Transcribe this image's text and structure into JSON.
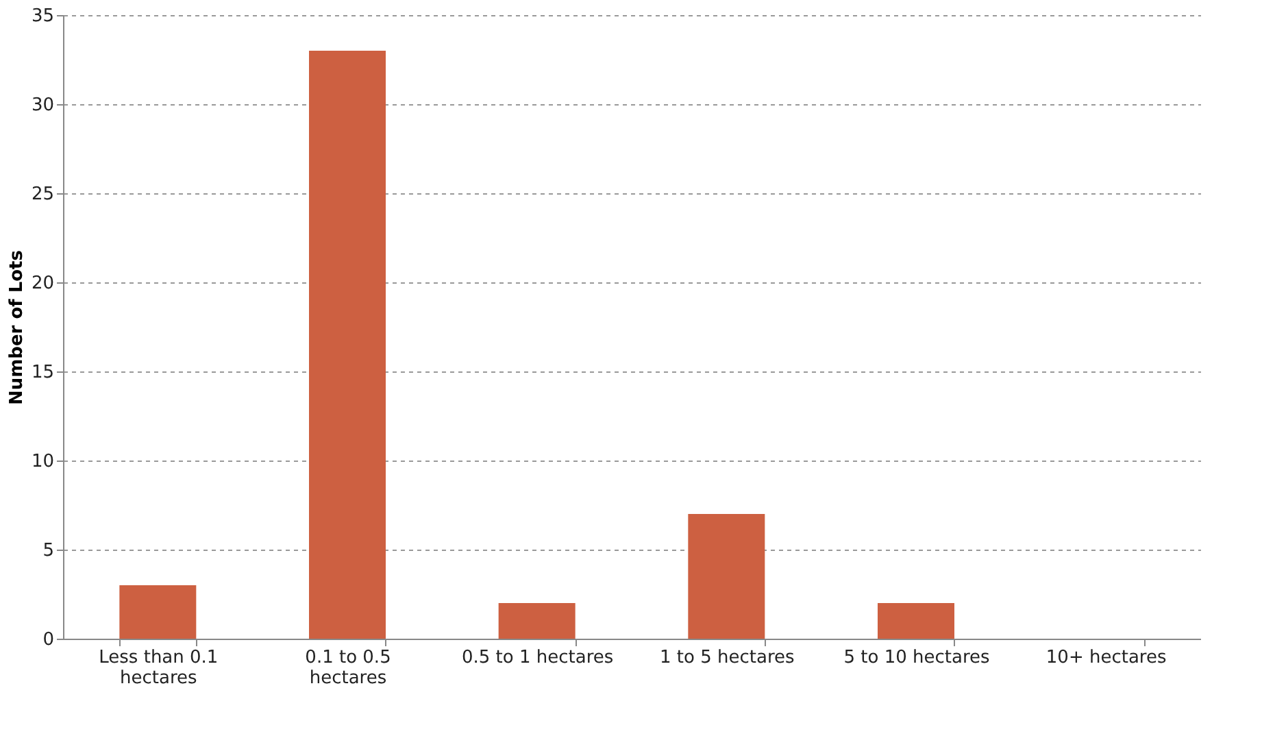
{
  "chart_data": {
    "type": "bar",
    "categories": [
      "Less than 0.1 hectares",
      "0.1 to 0.5 hectares",
      "0.5 to 1 hectares",
      "1 to 5 hectares",
      "5 to 10 hectares",
      "10+ hectares"
    ],
    "values": [
      3,
      33,
      2,
      7,
      2,
      0
    ],
    "color": "#cd6041",
    "ylabel": "Number of Lots",
    "ylim": [
      0,
      35
    ],
    "yticks": [
      0,
      5,
      10,
      15,
      20,
      25,
      30,
      35
    ],
    "grid": "y",
    "line_style": "dashed"
  }
}
